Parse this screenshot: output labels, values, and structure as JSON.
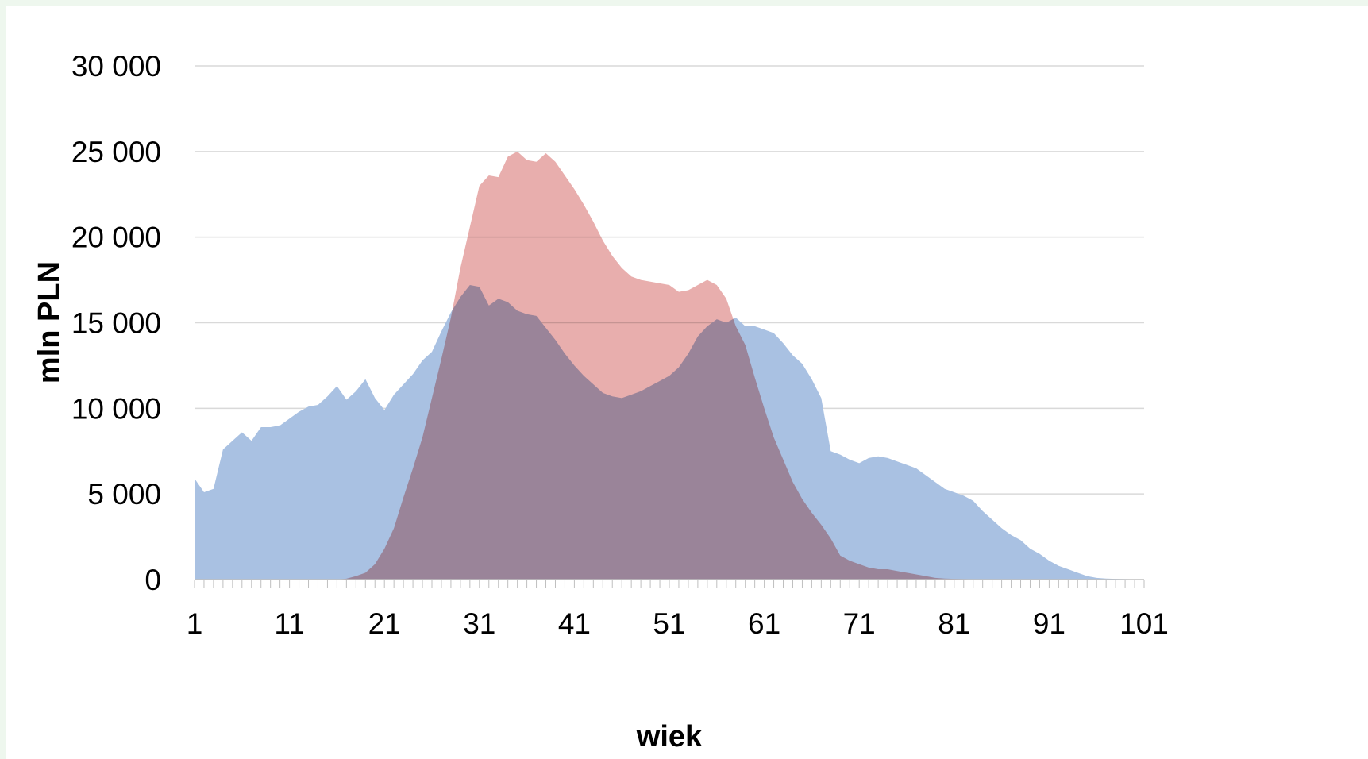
{
  "chart_data": {
    "type": "area",
    "title": "",
    "xlabel": "wiek",
    "ylabel": "mln PLN",
    "xlim": [
      1,
      101
    ],
    "ylim": [
      0,
      30000
    ],
    "x_tick_labels": [
      "1",
      "11",
      "21",
      "31",
      "41",
      "51",
      "61",
      "71",
      "81",
      "91",
      "101"
    ],
    "y_tick_labels": [
      "0",
      "5 000",
      "10 000",
      "15 000",
      "20 000",
      "25 000",
      "30 000"
    ],
    "y_ticks": [
      0,
      5000,
      10000,
      15000,
      20000,
      25000,
      30000
    ],
    "grid": true,
    "legend": "none",
    "x": [
      1,
      2,
      3,
      4,
      5,
      6,
      7,
      8,
      9,
      10,
      11,
      12,
      13,
      14,
      15,
      16,
      17,
      18,
      19,
      20,
      21,
      22,
      23,
      24,
      25,
      26,
      27,
      28,
      29,
      30,
      31,
      32,
      33,
      34,
      35,
      36,
      37,
      38,
      39,
      40,
      41,
      42,
      43,
      44,
      45,
      46,
      47,
      48,
      49,
      50,
      51,
      52,
      53,
      54,
      55,
      56,
      57,
      58,
      59,
      60,
      61,
      62,
      63,
      64,
      65,
      66,
      67,
      68,
      69,
      70,
      71,
      72,
      73,
      74,
      75,
      76,
      77,
      78,
      79,
      80,
      81,
      82,
      83,
      84,
      85,
      86,
      87,
      88,
      89,
      90,
      91,
      92,
      93,
      94,
      95,
      96,
      97,
      98,
      99,
      100,
      101
    ],
    "series": [
      {
        "color": "#a9c1e2",
        "values": [
          5900,
          5100,
          5300,
          7600,
          8100,
          8600,
          8100,
          8900,
          8900,
          9000,
          9400,
          9800,
          10100,
          10200,
          10700,
          11300,
          10500,
          11000,
          11700,
          10600,
          9900,
          10800,
          11400,
          12000,
          12800,
          13300,
          14500,
          15600,
          16500,
          17200,
          17100,
          16000,
          16400,
          16200,
          15700,
          15500,
          15400,
          14700,
          14000,
          13200,
          12500,
          11900,
          11400,
          10900,
          10700,
          10600,
          10800,
          11000,
          11300,
          11600,
          11900,
          12400,
          13200,
          14200,
          14800,
          15200,
          15000,
          15300,
          14800,
          14800,
          14600,
          14400,
          13800,
          13100,
          12600,
          11700,
          10600,
          7500,
          7300,
          7000,
          6800,
          7100,
          7200,
          7100,
          6900,
          6700,
          6500,
          6100,
          5700,
          5300,
          5100,
          4900,
          4600,
          4000,
          3500,
          3000,
          2600,
          2300,
          1800,
          1500,
          1100,
          800,
          600,
          400,
          200,
          100,
          60,
          40,
          30,
          20,
          10
        ]
      },
      {
        "color": "#e4a09f",
        "values": [
          0,
          0,
          0,
          0,
          0,
          0,
          0,
          0,
          0,
          0,
          0,
          0,
          0,
          0,
          0,
          0,
          50,
          200,
          400,
          900,
          1800,
          3000,
          4800,
          6500,
          8300,
          10600,
          12900,
          15300,
          18200,
          20600,
          23000,
          23600,
          23500,
          24700,
          25000,
          24500,
          24400,
          24900,
          24400,
          23600,
          22800,
          21900,
          20900,
          19800,
          18900,
          18200,
          17700,
          17500,
          17400,
          17300,
          17200,
          16800,
          16900,
          17200,
          17500,
          17200,
          16400,
          14800,
          13700,
          11800,
          10000,
          8300,
          7000,
          5700,
          4700,
          3900,
          3200,
          2400,
          1400,
          1100,
          900,
          700,
          600,
          600,
          500,
          400,
          300,
          200,
          100,
          60,
          40,
          30,
          20,
          10,
          10,
          0,
          0,
          0,
          0,
          0,
          0,
          0,
          0,
          0,
          0,
          0,
          0,
          0,
          0,
          0,
          0
        ]
      }
    ]
  }
}
